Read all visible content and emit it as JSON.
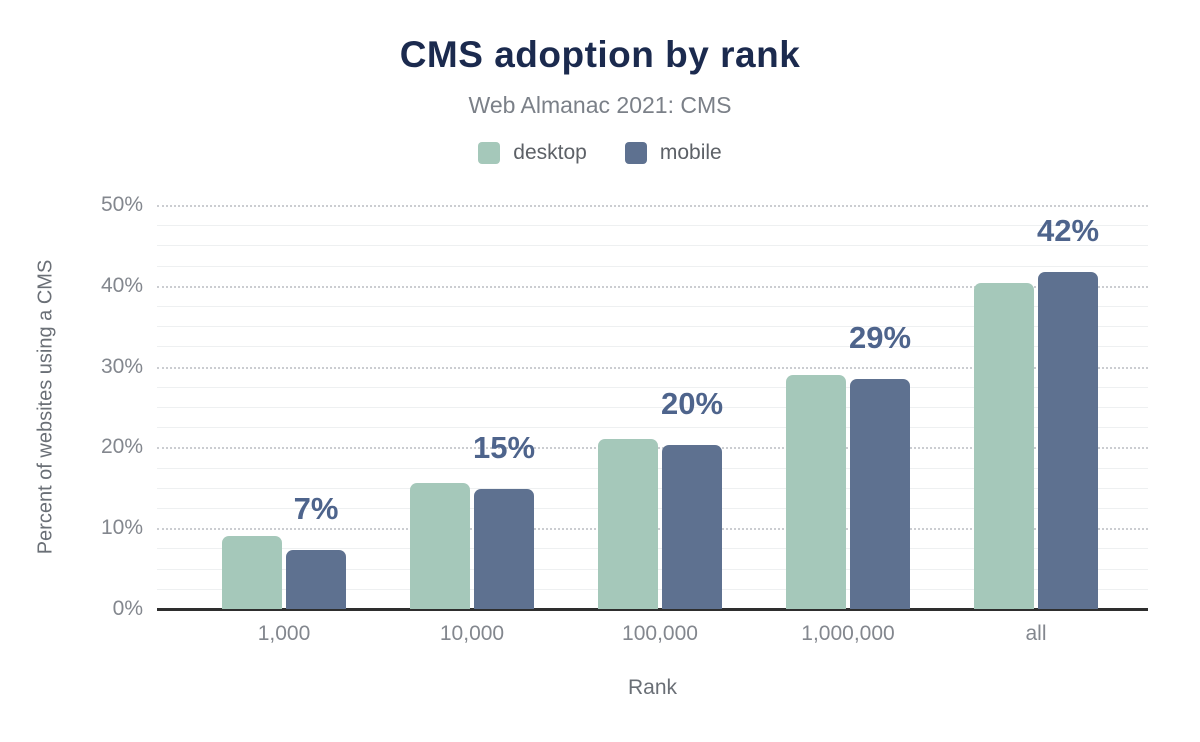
{
  "chart_data": {
    "type": "bar",
    "title": "CMS adoption by rank",
    "subtitle": "Web Almanac 2021: CMS",
    "xlabel": "Rank",
    "ylabel": "Percent of websites using a CMS",
    "categories": [
      "1,000",
      "10,000",
      "100,000",
      "1,000,000",
      "all"
    ],
    "series": [
      {
        "name": "desktop",
        "color": "#a5c8ba",
        "values": [
          9.0,
          15.6,
          21.0,
          29.0,
          40.4
        ]
      },
      {
        "name": "mobile",
        "color": "#5e7190",
        "values": [
          7.3,
          14.9,
          20.3,
          28.5,
          41.7
        ]
      }
    ],
    "data_labels": [
      "7%",
      "15%",
      "20%",
      "29%",
      "42%"
    ],
    "data_label_series": "mobile",
    "y_ticks": [
      "0%",
      "10%",
      "20%",
      "30%",
      "40%",
      "50%"
    ],
    "ylim": [
      0,
      50
    ],
    "y_major_step": 10,
    "y_minor_step": 2.5,
    "grid": "major dotted, minor solid",
    "legend_position": "top"
  },
  "colors": {
    "title": "#1b2a4e",
    "subtitle": "#7b8088",
    "data_label": "#4e648c",
    "tick_label": "#83878e",
    "axis_title": "#6a6f76",
    "major_gridline": "#cbcdd1",
    "minor_gridline": "#eef0f1",
    "baseline": "#2e2e2e",
    "background": "#ffffff"
  }
}
